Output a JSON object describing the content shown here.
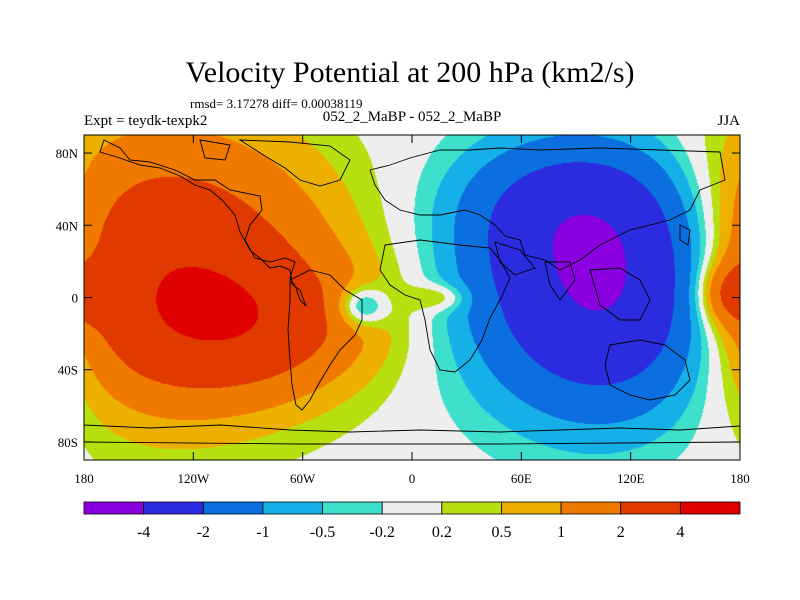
{
  "chart_data": {
    "type": "heatmap",
    "title": "Velocity Potential at 200 hPa (km2/s)",
    "stats_line": "rmsd= 3.17278 diff= 0.00038119",
    "left_header": "Expt = teydk-texpk2",
    "center_header": "052_2_MaBP - 052_2_MaBP",
    "right_header": "JJA",
    "x_axis": {
      "range": [
        -180,
        180
      ],
      "ticks": [
        {
          "value": -180,
          "label": "180"
        },
        {
          "value": -120,
          "label": "120W"
        },
        {
          "value": -60,
          "label": "60W"
        },
        {
          "value": 0,
          "label": "0"
        },
        {
          "value": 60,
          "label": "60E"
        },
        {
          "value": 120,
          "label": "120E"
        },
        {
          "value": 180,
          "label": "180"
        }
      ]
    },
    "y_axis": {
      "range": [
        -90,
        90
      ],
      "ticks": [
        {
          "value": 80,
          "label": "80N"
        },
        {
          "value": 40,
          "label": "40N"
        },
        {
          "value": 0,
          "label": "0"
        },
        {
          "value": -40,
          "label": "40S"
        },
        {
          "value": -80,
          "label": "80S"
        }
      ]
    },
    "contour_levels": [
      {
        "value": -4,
        "label": "-4"
      },
      {
        "value": -2,
        "label": "-2"
      },
      {
        "value": -1,
        "label": "-1"
      },
      {
        "value": -0.5,
        "label": "-0.5"
      },
      {
        "value": -0.2,
        "label": "-0.2"
      },
      {
        "value": 0.2,
        "label": "0.2"
      },
      {
        "value": 0.5,
        "label": "0.5"
      },
      {
        "value": 1,
        "label": "1"
      },
      {
        "value": 2,
        "label": "2"
      },
      {
        "value": 4,
        "label": "4"
      }
    ],
    "colorbar_colors": [
      "#8a00e0",
      "#2b2be0",
      "#0b6fe0",
      "#16b0e8",
      "#3ee0cc",
      "#eeeeee",
      "#b8e010",
      "#eeb000",
      "#f07a00",
      "#e03a00",
      "#e00000"
    ],
    "field_centers": [
      {
        "lon": -140,
        "lat": 15,
        "amp": 3.6,
        "slon": 60,
        "slat": 50
      },
      {
        "lon": -90,
        "lat": -15,
        "amp": 2.0,
        "slon": 45,
        "slat": 25
      },
      {
        "lon": 110,
        "lat": 5,
        "amp": -4.6,
        "slon": 48,
        "slat": 45
      },
      {
        "lon": 85,
        "lat": 50,
        "amp": -1.5,
        "slon": 40,
        "slat": 25
      },
      {
        "lon": 15,
        "lat": 0,
        "amp": 0.8,
        "slon": 12,
        "slat": 5
      },
      {
        "lon": -28,
        "lat": -5,
        "amp": -1.6,
        "slon": 10,
        "slat": 8
      },
      {
        "lon": 175,
        "lat": 2,
        "amp": 1.8,
        "slon": 12,
        "slat": 12
      }
    ]
  }
}
